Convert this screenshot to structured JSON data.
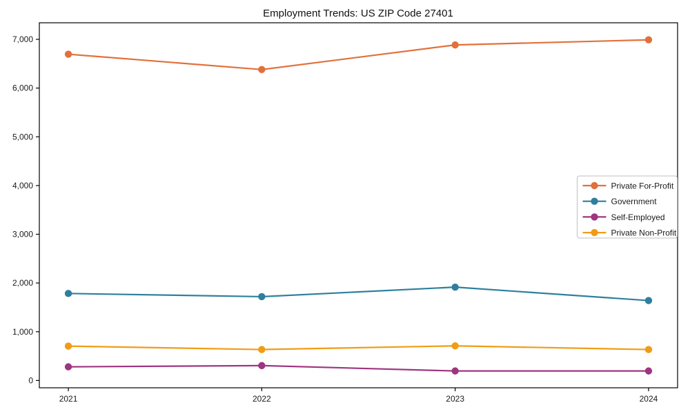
{
  "chart_data": {
    "type": "line",
    "title": "Employment Trends: US ZIP Code 27401",
    "categories": [
      "2021",
      "2022",
      "2023",
      "2024"
    ],
    "series": [
      {
        "name": "Private For-Profit",
        "color": "#e2703a",
        "values": [
          6695,
          6380,
          6885,
          6990
        ]
      },
      {
        "name": "Government",
        "color": "#2e7f9e",
        "values": [
          1785,
          1720,
          1915,
          1640
        ]
      },
      {
        "name": "Self-Employed",
        "color": "#9e3580",
        "values": [
          280,
          305,
          195,
          195
        ]
      },
      {
        "name": "Private Non-Profit",
        "color": "#f09c16",
        "values": [
          705,
          635,
          710,
          635
        ]
      }
    ],
    "xlabel": "",
    "ylabel": "",
    "xlim": [
      -0.15,
      3.15
    ],
    "ylim": [
      -150,
      7340
    ],
    "yticks": [
      0,
      1000,
      2000,
      3000,
      4000,
      5000,
      6000,
      7000
    ],
    "ytick_labels": [
      "0",
      "1,000",
      "2,000",
      "3,000",
      "4,000",
      "5,000",
      "6,000",
      "7,000"
    ],
    "grid": false,
    "legend_position": "center right",
    "marker": "circle",
    "axis_color": "#000000",
    "legend_border_color": "#bfbfbf",
    "legend_background": "#ffffff"
  }
}
